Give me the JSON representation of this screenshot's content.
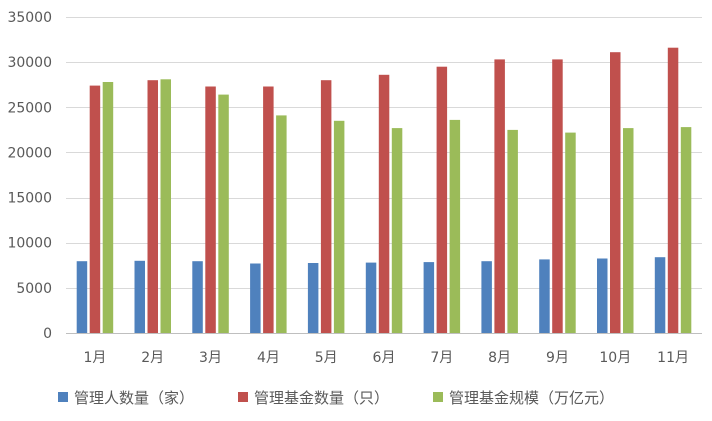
{
  "chart_data": {
    "type": "bar",
    "title": "",
    "xlabel": "",
    "ylabel": "",
    "categories": [
      "1月",
      "2月",
      "3月",
      "4月",
      "5月",
      "6月",
      "7月",
      "8月",
      "9月",
      "10月",
      "11月"
    ],
    "ylim": [
      0,
      35000
    ],
    "yticks": [
      0,
      5000,
      10000,
      15000,
      20000,
      25000,
      30000,
      35000
    ],
    "grid": true,
    "legend_position": "bottom",
    "series": [
      {
        "name": "管理人数量（家）",
        "color": "#4f81bd",
        "values": [
          7950,
          8000,
          7950,
          7700,
          7750,
          7800,
          7850,
          7950,
          8150,
          8250,
          8400
        ]
      },
      {
        "name": "管理基金数量（只）",
        "color": "#c0504d",
        "values": [
          27400,
          28000,
          27300,
          27300,
          28000,
          28600,
          29500,
          30300,
          30300,
          31100,
          31600
        ]
      },
      {
        "name": "管理基金规模（万亿元）",
        "color": "#9bbb59",
        "values": [
          27800,
          28100,
          26400,
          24100,
          23500,
          22700,
          23600,
          22500,
          22200,
          22700,
          22800
        ]
      }
    ]
  }
}
